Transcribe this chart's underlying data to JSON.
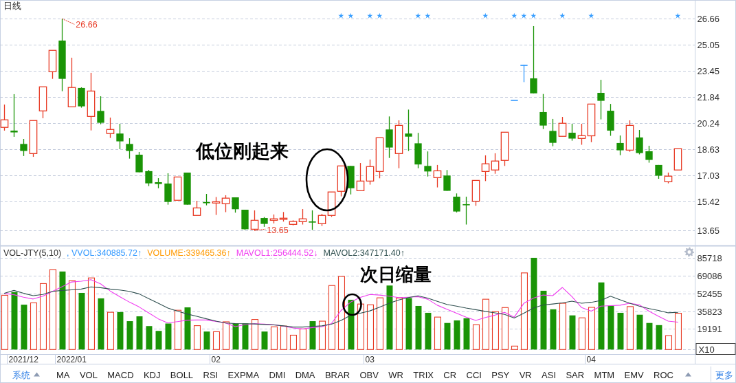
{
  "chart_data": [
    {
      "type": "candlestick",
      "title": "日线",
      "categories": [
        null,
        null,
        "2021/12",
        null,
        null,
        null,
        null,
        "2022/01",
        null,
        null,
        null,
        null,
        null,
        null,
        null,
        null,
        null,
        null,
        null,
        null,
        null,
        null,
        "02",
        null,
        null,
        null,
        null,
        null,
        null,
        null,
        null,
        null,
        null,
        null,
        null,
        null,
        null,
        null,
        "03",
        null,
        null,
        null,
        null,
        null,
        null,
        null,
        null,
        null,
        null,
        null,
        null,
        null,
        null,
        null,
        null,
        null,
        null,
        null,
        null,
        null,
        null,
        "04",
        null,
        null,
        null,
        null,
        null,
        null,
        null,
        null,
        null
      ],
      "ohlc": [
        [
          19.99,
          21.39,
          19.79,
          20.45
        ],
        [
          19.79,
          22.03,
          19.41,
          19.68
        ],
        [
          18.97,
          19.28,
          18.23,
          18.54
        ],
        [
          18.38,
          20.41,
          18.18,
          20.41
        ],
        [
          21.0,
          22.48,
          20.55,
          22.48
        ],
        [
          23.41,
          24.72,
          22.97,
          24.72
        ],
        [
          25.32,
          26.66,
          22.21,
          22.97
        ],
        [
          21.25,
          24.27,
          21.25,
          22.44
        ],
        [
          22.41,
          22.45,
          21.2,
          21.28
        ],
        [
          20.66,
          23.34,
          19.8,
          22.22
        ],
        [
          21.0,
          21.9,
          20.18,
          20.27
        ],
        [
          19.61,
          20.59,
          19.34,
          19.86
        ],
        [
          19.61,
          20.21,
          18.65,
          19.13
        ],
        [
          18.97,
          19.32,
          18.07,
          18.54
        ],
        [
          18.31,
          18.48,
          17.23,
          17.23
        ],
        [
          17.3,
          17.38,
          16.38,
          16.55
        ],
        [
          16.62,
          16.87,
          16.25,
          16.51
        ],
        [
          16.54,
          17.17,
          15.24,
          15.41
        ],
        [
          15.51,
          16.94,
          15.51,
          16.94
        ],
        [
          17.21,
          17.21,
          15.24,
          15.24
        ],
        [
          14.58,
          15.48,
          14.58,
          15.04
        ],
        [
          15.4,
          15.9,
          15.2,
          15.33
        ],
        [
          15.34,
          15.71,
          14.61,
          15.42
        ],
        [
          15.3,
          15.82,
          14.78,
          15.64
        ],
        [
          15.69,
          15.69,
          14.75,
          14.96
        ],
        [
          14.93,
          14.93,
          13.69,
          13.73
        ],
        [
          13.73,
          14.89,
          13.65,
          14.28
        ],
        [
          14.42,
          14.48,
          13.88,
          14.06
        ],
        [
          14.28,
          14.64,
          14.09,
          14.37
        ],
        [
          14.34,
          14.79,
          14.2,
          14.41
        ],
        [
          14.03,
          14.28,
          13.97,
          14.21
        ],
        [
          14.2,
          14.97,
          14.02,
          14.37
        ],
        [
          14.21,
          14.89,
          13.69,
          14.14
        ],
        [
          14.07,
          14.68,
          13.93,
          14.58
        ],
        [
          14.58,
          16.02,
          14.49,
          16.02
        ],
        [
          16.06,
          17.62,
          15.75,
          17.62
        ],
        [
          17.62,
          17.62,
          15.87,
          16.25
        ],
        [
          16.1,
          17.8,
          16.1,
          16.69
        ],
        [
          16.69,
          18.01,
          16.47,
          17.58
        ],
        [
          17.28,
          19.35,
          16.86,
          19.35
        ],
        [
          19.86,
          20.66,
          18.11,
          18.75
        ],
        [
          18.38,
          20.42,
          17.48,
          20.11
        ],
        [
          19.61,
          21.08,
          18.54,
          19.42
        ],
        [
          19.01,
          19.65,
          17.48,
          17.71
        ],
        [
          17.62,
          18.51,
          16.97,
          17.28
        ],
        [
          16.9,
          17.68,
          16.3,
          17.32
        ],
        [
          17.03,
          17.37,
          16.09,
          16.09
        ],
        [
          15.73,
          15.93,
          14.76,
          14.82
        ],
        [
          15.27,
          15.73,
          14.02,
          15.21
        ],
        [
          15.45,
          16.73,
          15.17,
          16.73
        ],
        [
          17.28,
          18.27,
          16.69,
          17.75
        ],
        [
          17.37,
          18.4,
          17.14,
          17.92
        ],
        [
          17.96,
          19.69,
          17.62,
          19.69
        ],
        [
          21.68,
          21.68,
          21.68,
          21.68
        ],
        [
          23.83,
          23.83,
          22.77,
          23.83
        ],
        [
          23.0,
          26.21,
          22.08,
          22.08
        ],
        [
          20.93,
          22.04,
          19.89,
          20.1
        ],
        [
          19.77,
          20.51,
          18.83,
          19.04
        ],
        [
          19.44,
          20.63,
          19.44,
          20.24
        ],
        [
          19.66,
          20.21,
          19.17,
          19.3
        ],
        [
          19.31,
          20.21,
          18.92,
          19.48
        ],
        [
          19.47,
          21.42,
          19.08,
          21.42
        ],
        [
          22.11,
          22.91,
          20.48,
          21.62
        ],
        [
          21.01,
          21.43,
          19.47,
          19.79
        ],
        [
          19.03,
          19.49,
          18.28,
          18.58
        ],
        [
          18.59,
          20.42,
          18.49,
          20.11
        ],
        [
          19.37,
          19.83,
          18.33,
          18.41
        ],
        [
          18.52,
          18.86,
          17.82,
          17.99
        ],
        [
          17.68,
          17.68,
          16.83,
          17.02
        ],
        [
          16.65,
          17.21,
          16.55,
          16.99
        ],
        [
          17.37,
          18.68,
          17.37,
          18.68
        ]
      ],
      "colors": [
        "#e83a24",
        "#1a9406",
        "#1a9406",
        "#e83a24",
        "#e83a24",
        "#e83a24",
        "#1a9406",
        "#e83a24",
        "#1a9406",
        "#e83a24",
        "#1a9406",
        "#e83a24",
        "#1a9406",
        "#1a9406",
        "#1a9406",
        "#1a9406",
        "#1a9406",
        "#1a9406",
        "#e83a24",
        "#1a9406",
        "#e83a24",
        "#1a9406",
        "#e83a24",
        "#e83a24",
        "#1a9406",
        "#1a9406",
        "#e83a24",
        "#1a9406",
        "#e83a24",
        "#e83a24",
        "#e83a24",
        "#e83a24",
        "#1a9406",
        "#e83a24",
        "#e83a24",
        "#e83a24",
        "#1a9406",
        "#e83a24",
        "#e83a24",
        "#e83a24",
        "#1a9406",
        "#e83a24",
        "#1a9406",
        "#1a9406",
        "#1a9406",
        "#e83a24",
        "#1a9406",
        "#1a9406",
        "#1a9406",
        "#e83a24",
        "#e83a24",
        "#e83a24",
        "#e83a24",
        "#3399ff",
        "#3399ff",
        "#1a9406",
        "#1a9406",
        "#1a9406",
        "#e83a24",
        "#1a9406",
        "#e83a24",
        "#e83a24",
        "#1a9406",
        "#1a9406",
        "#1a9406",
        "#e83a24",
        "#1a9406",
        "#1a9406",
        "#1a9406",
        "#e83a24",
        "#e83a24"
      ],
      "ylim": [
        12.75,
        27.8
      ],
      "yticks": [
        13.65,
        15.42,
        17.03,
        18.63,
        20.24,
        21.84,
        23.45,
        25.05,
        26.66
      ],
      "grid": "y",
      "tick_labels": "y",
      "series": [
        {
          "type": "scatter",
          "marker": "star",
          "color": "#3ca0ff",
          "values": [
            null,
            null,
            null,
            null,
            null,
            null,
            null,
            null,
            null,
            null,
            null,
            null,
            null,
            null,
            null,
            null,
            null,
            null,
            null,
            null,
            null,
            null,
            null,
            null,
            null,
            null,
            null,
            null,
            null,
            null,
            null,
            null,
            null,
            null,
            null,
            26.84,
            26.84,
            null,
            26.84,
            26.84,
            null,
            null,
            null,
            26.84,
            26.84,
            null,
            null,
            null,
            null,
            null,
            26.84,
            null,
            null,
            26.84,
            26.84,
            26.84,
            null,
            null,
            26.84,
            null,
            null,
            26.84,
            null,
            null,
            null,
            null,
            null,
            null,
            null,
            null,
            26.84
          ]
        }
      ],
      "annotations": [
        "26.66",
        "13.65",
        "低位刚起来"
      ]
    },
    {
      "type": "bar",
      "title": "VOL-JTY(5,10)",
      "categories": [
        null,
        null,
        "2021/12",
        null,
        null,
        null,
        null,
        "2022/01",
        null,
        null,
        null,
        null,
        null,
        null,
        null,
        null,
        null,
        null,
        null,
        null,
        null,
        null,
        "02",
        null,
        null,
        null,
        null,
        null,
        null,
        null,
        null,
        null,
        null,
        null,
        null,
        null,
        null,
        null,
        "03",
        null,
        null,
        null,
        null,
        null,
        null,
        null,
        null,
        null,
        null,
        null,
        null,
        null,
        null,
        null,
        null,
        null,
        null,
        null,
        null,
        null,
        null,
        "04",
        null,
        null,
        null,
        null,
        null,
        null,
        null,
        null,
        null
      ],
      "series": [
        {
          "type": "bar",
          "colors": [
            "#e83a24",
            "#1a9406",
            "#1a9406",
            "#e83a24",
            "#e83a24",
            "#e83a24",
            "#1a9406",
            "#e83a24",
            "#1a9406",
            "#e83a24",
            "#1a9406",
            "#e83a24",
            "#1a9406",
            "#1a9406",
            "#1a9406",
            "#1a9406",
            "#1a9406",
            "#1a9406",
            "#e83a24",
            "#1a9406",
            "#e83a24",
            "#1a9406",
            "#e83a24",
            "#e83a24",
            "#1a9406",
            "#1a9406",
            "#e83a24",
            "#1a9406",
            "#e83a24",
            "#e83a24",
            "#e83a24",
            "#e83a24",
            "#1a9406",
            "#e83a24",
            "#e83a24",
            "#e83a24",
            "#1a9406",
            "#e83a24",
            "#e83a24",
            "#e83a24",
            "#1a9406",
            "#e83a24",
            "#1a9406",
            "#1a9406",
            "#1a9406",
            "#e83a24",
            "#1a9406",
            "#1a9406",
            "#1a9406",
            "#e83a24",
            "#e83a24",
            "#e83a24",
            "#e83a24",
            "#e83a24",
            "#e83a24",
            "#1a9406",
            "#1a9406",
            "#1a9406",
            "#e83a24",
            "#1a9406",
            "#e83a24",
            "#e83a24",
            "#1a9406",
            "#1a9406",
            "#1a9406",
            "#e83a24",
            "#1a9406",
            "#1a9406",
            "#1a9406",
            "#e83a24",
            "#e83a24"
          ],
          "values": [
            50700,
            53600,
            41900,
            43600,
            61600,
            74700,
            72900,
            64300,
            52900,
            66900,
            47800,
            34800,
            35000,
            26500,
            31000,
            21900,
            17400,
            24300,
            36700,
            39400,
            22300,
            16800,
            16600,
            25900,
            24300,
            24300,
            28100,
            16800,
            21200,
            21900,
            13400,
            19200,
            26500,
            26500,
            59800,
            68300,
            46500,
            42500,
            41800,
            48300,
            59800,
            48100,
            48100,
            40700,
            34300,
            30300,
            24800,
            27200,
            29200,
            23200,
            47000,
            35400,
            39200,
            3200,
            71600,
            85700,
            54900,
            37600,
            43200,
            31900,
            29600,
            39400,
            62700,
            41000,
            34300,
            40100,
            32500,
            24800,
            22800,
            13000,
            33900
          ]
        },
        {
          "type": "line",
          "name": "MAVOL1:256444.52↓",
          "color": "#f03cf0",
          "values": [
            52500,
            51200,
            48900,
            47200,
            49800,
            54300,
            58700,
            63100,
            63800,
            65300,
            61400,
            54700,
            49400,
            44300,
            39800,
            34300,
            28700,
            24800,
            26100,
            27400,
            27600,
            27600,
            26300,
            24800,
            21400,
            23200,
            24100,
            23700,
            23200,
            21900,
            20100,
            19200,
            20500,
            21200,
            24300,
            36500,
            44300,
            48700,
            51400,
            50900,
            49800,
            48500,
            48900,
            49400,
            47000,
            41400,
            37600,
            33900,
            30300,
            27200,
            29900,
            32100,
            34700,
            30300,
            43200,
            48100,
            50900,
            50300,
            58000,
            49400,
            39200,
            35900,
            40500,
            41000,
            41400,
            43200,
            41800,
            35900,
            31000,
            26500,
            25600
          ]
        },
        {
          "type": "line",
          "name": "MAVOL2:347171.40↑",
          "color": "#2f4f4f",
          "values": [
            52500,
            55200,
            52500,
            50300,
            51400,
            54300,
            55200,
            55800,
            56500,
            58500,
            57800,
            56500,
            55600,
            54300,
            52000,
            47600,
            43200,
            38700,
            35800,
            33200,
            31000,
            28700,
            26500,
            24800,
            24300,
            24100,
            23900,
            23400,
            23000,
            22100,
            21000,
            21000,
            21600,
            22100,
            23700,
            27200,
            32100,
            33900,
            36100,
            39600,
            43200,
            46300,
            48500,
            50100,
            48100,
            45000,
            42100,
            40500,
            38700,
            37200,
            35600,
            34300,
            32800,
            29400,
            33900,
            38700,
            41600,
            42500,
            43600,
            45200,
            43200,
            44100,
            45800,
            49800,
            46500,
            43200,
            40500,
            38300,
            36500,
            34300,
            34700
          ]
        }
      ],
      "ylim": [
        0,
        96000
      ],
      "yticks": [
        {
          "value": 0,
          "label": null
        },
        19191,
        35823,
        52455,
        69086,
        85718
      ],
      "ylabel": "X10",
      "grid": "y",
      "legend": "top left",
      "annotations": [
        ", VVOL:340885.72↑",
        "VOLUME:339465.36↑",
        "次日缩量"
      ]
    },
    {
      "type": "other",
      "annotations": [
        "系统",
        "MA",
        "VOL",
        "MACD",
        "KDJ",
        "BOLL",
        "RSI",
        "EXPMA",
        "DMI",
        "DMA",
        "BRAR",
        "OBV",
        "WR",
        "TRIX",
        "CR",
        "CCI",
        "PSY",
        "VR",
        "ASI",
        "SAR",
        "MTM",
        "EMV",
        "ROC",
        "更多"
      ]
    }
  ]
}
